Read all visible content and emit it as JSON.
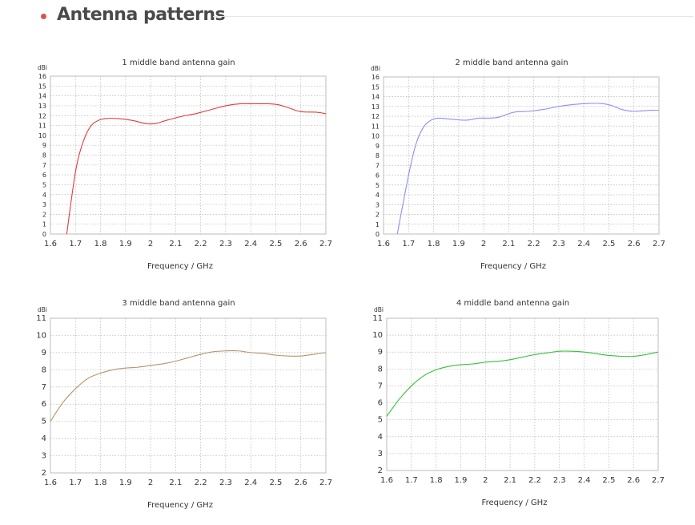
{
  "header": {
    "title": "Antenna patterns"
  },
  "chart_data": [
    {
      "type": "line",
      "title": "1 middle band antenna gain",
      "xlabel": "Frequency / GHz",
      "ylabel": "dBi",
      "xlim": [
        1.6,
        2.7
      ],
      "ylim": [
        0,
        16
      ],
      "xticks": [
        "1.6",
        "1.7",
        "1.8",
        "1.9",
        "2",
        "2.1",
        "2.2",
        "2.3",
        "2.4",
        "2.5",
        "2.6",
        "2.7"
      ],
      "yticks": [
        "0",
        "1",
        "2",
        "3",
        "4",
        "5",
        "6",
        "7",
        "8",
        "9",
        "10",
        "11",
        "12",
        "13",
        "14",
        "15",
        "16"
      ],
      "grid": true,
      "series": [
        {
          "color": "#e23b3b",
          "x": [
            1.665,
            1.7,
            1.73,
            1.76,
            1.79,
            1.82,
            1.87,
            1.93,
            1.98,
            2.02,
            2.06,
            2.12,
            2.18,
            2.24,
            2.3,
            2.36,
            2.42,
            2.47,
            2.51,
            2.55,
            2.6,
            2.66,
            2.7
          ],
          "y": [
            0,
            6.3,
            9.3,
            10.9,
            11.5,
            11.7,
            11.7,
            11.5,
            11.2,
            11.2,
            11.5,
            11.9,
            12.2,
            12.6,
            13.0,
            13.2,
            13.2,
            13.2,
            13.1,
            12.8,
            12.4,
            12.35,
            12.2
          ]
        }
      ]
    },
    {
      "type": "line",
      "title": "2 middle band antenna gain",
      "xlabel": "Frequency / GHz",
      "ylabel": "dBi",
      "xlim": [
        1.6,
        2.7
      ],
      "ylim": [
        0,
        16
      ],
      "xticks": [
        "1.6",
        "1.7",
        "1.8",
        "1.9",
        "2",
        "2.1",
        "2.2",
        "2.3",
        "2.4",
        "2.5",
        "2.6",
        "2.7"
      ],
      "yticks": [
        "0",
        "1",
        "2",
        "3",
        "4",
        "5",
        "6",
        "7",
        "8",
        "9",
        "10",
        "11",
        "12",
        "13",
        "14",
        "15",
        "16"
      ],
      "grid": true,
      "series": [
        {
          "color": "#8f8ff0",
          "x": [
            1.655,
            1.7,
            1.73,
            1.76,
            1.79,
            1.82,
            1.87,
            1.93,
            1.98,
            2.02,
            2.06,
            2.12,
            2.18,
            2.24,
            2.3,
            2.36,
            2.42,
            2.47,
            2.51,
            2.55,
            2.6,
            2.66,
            2.7
          ],
          "y": [
            0,
            6.0,
            9.2,
            10.9,
            11.6,
            11.8,
            11.7,
            11.6,
            11.8,
            11.8,
            11.9,
            12.4,
            12.5,
            12.7,
            13.0,
            13.2,
            13.3,
            13.3,
            13.1,
            12.7,
            12.5,
            12.6,
            12.6
          ]
        }
      ]
    },
    {
      "type": "line",
      "title": "3 middle band antenna gain",
      "xlabel": "Frequency / GHz",
      "ylabel": "dBi",
      "xlim": [
        1.6,
        2.7
      ],
      "ylim": [
        2,
        11
      ],
      "xticks": [
        "1.6",
        "1.7",
        "1.8",
        "1.9",
        "2",
        "2.1",
        "2.2",
        "2.3",
        "2.4",
        "2.5",
        "2.6",
        "2.7"
      ],
      "yticks": [
        "2",
        "3",
        "4",
        "5",
        "6",
        "7",
        "8",
        "9",
        "10",
        "11"
      ],
      "grid": true,
      "series": [
        {
          "color": "#b8926a",
          "x": [
            1.6,
            1.65,
            1.7,
            1.75,
            1.8,
            1.85,
            1.9,
            1.95,
            2.0,
            2.05,
            2.1,
            2.15,
            2.2,
            2.25,
            2.3,
            2.35,
            2.4,
            2.45,
            2.5,
            2.55,
            2.6,
            2.65,
            2.7
          ],
          "y": [
            5.0,
            6.1,
            6.9,
            7.5,
            7.8,
            8.0,
            8.1,
            8.15,
            8.25,
            8.35,
            8.5,
            8.7,
            8.9,
            9.05,
            9.1,
            9.1,
            9.0,
            8.95,
            8.85,
            8.8,
            8.8,
            8.9,
            9.0
          ]
        }
      ]
    },
    {
      "type": "line",
      "title": "4 middle band antenna gain",
      "xlabel": "Frequency / GHz",
      "ylabel": "dBi",
      "xlim": [
        1.6,
        2.7
      ],
      "ylim": [
        2,
        11
      ],
      "xticks": [
        "1.6",
        "1.7",
        "1.8",
        "1.9",
        "2",
        "2.1",
        "2.2",
        "2.3",
        "2.4",
        "2.5",
        "2.6",
        "2.7"
      ],
      "yticks": [
        "2",
        "3",
        "4",
        "5",
        "6",
        "7",
        "8",
        "9",
        "10",
        "11"
      ],
      "grid": true,
      "series": [
        {
          "color": "#33c233",
          "x": [
            1.6,
            1.65,
            1.7,
            1.75,
            1.8,
            1.85,
            1.9,
            1.95,
            2.0,
            2.05,
            2.1,
            2.15,
            2.2,
            2.25,
            2.3,
            2.35,
            2.4,
            2.45,
            2.5,
            2.55,
            2.6,
            2.65,
            2.7
          ],
          "y": [
            5.2,
            6.2,
            7.0,
            7.6,
            7.95,
            8.15,
            8.25,
            8.3,
            8.4,
            8.45,
            8.55,
            8.7,
            8.85,
            8.95,
            9.05,
            9.05,
            9.0,
            8.9,
            8.8,
            8.75,
            8.75,
            8.85,
            9.0
          ]
        }
      ]
    }
  ]
}
